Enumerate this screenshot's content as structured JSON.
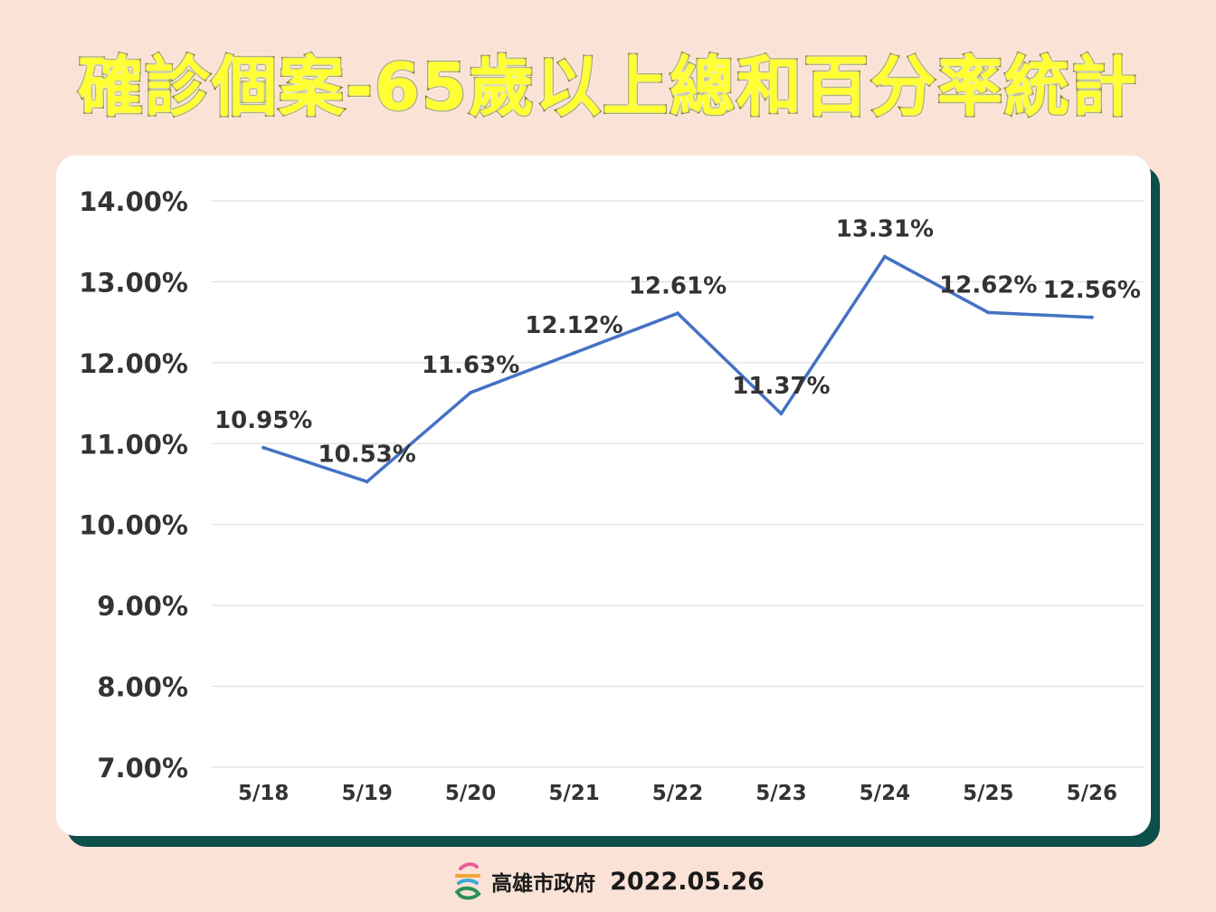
{
  "title": "確診個案-65歲以上總和百分率統計",
  "footer": {
    "org": "高雄市政府",
    "date": "2022.05.26"
  },
  "colors": {
    "background": "#fae3d6",
    "card": "#ffffff",
    "card_shadow": "#0d4f4b",
    "title_fill": "#ffff33",
    "line": "#4472c4",
    "grid": "#d9d9d9",
    "text": "#333333"
  },
  "chart_data": {
    "type": "line",
    "categories": [
      "5/18",
      "5/19",
      "5/20",
      "5/21",
      "5/22",
      "5/23",
      "5/24",
      "5/25",
      "5/26"
    ],
    "series": [
      {
        "values": [
          10.95,
          10.53,
          11.63,
          12.12,
          12.61,
          11.37,
          13.31,
          12.62,
          12.56
        ]
      }
    ],
    "data_labels": [
      "10.95%",
      "10.53%",
      "11.63%",
      "12.12%",
      "12.61%",
      "11.37%",
      "13.31%",
      "12.62%",
      "12.56%"
    ],
    "y_ticks": [
      "7.00%",
      "8.00%",
      "9.00%",
      "10.00%",
      "11.00%",
      "12.00%",
      "13.00%",
      "14.00%"
    ],
    "ylim": [
      7,
      14
    ],
    "grid": true,
    "legend": false
  }
}
